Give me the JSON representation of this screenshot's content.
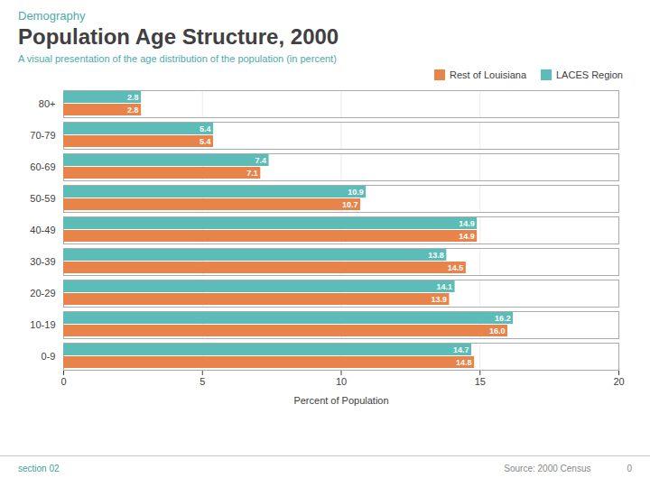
{
  "chart_data": {
    "type": "bar",
    "orientation": "horizontal",
    "title": "Population Age Structure, 2000",
    "subtitle": "Demography",
    "annotations": [
      "A visual presentation of the age distribution of the population (in percent)",
      "section 02",
      "Source: 2000 Census",
      "0"
    ],
    "categories": [
      "80+",
      "70-79",
      "60-69",
      "50-59",
      "40-49",
      "30-39",
      "20-29",
      "10-19",
      "0-9"
    ],
    "series": [
      {
        "name": "Rest of Louisiana",
        "color": "#E8834A",
        "values": [
          2.8,
          5.4,
          7.1,
          10.7,
          14.9,
          14.5,
          13.9,
          16.0,
          14.8
        ],
        "value_labels": [
          "2.8",
          "5.4",
          "7.1",
          "10.7",
          "14.9",
          "14.5",
          "13.9",
          "16.0",
          "14.8"
        ]
      },
      {
        "name": "LACES Region",
        "color": "#5BBCB8",
        "values": [
          2.8,
          5.4,
          7.4,
          10.9,
          14.9,
          13.8,
          14.1,
          16.2,
          14.7
        ]
      }
    ],
    "xlabel": "Percent of Population",
    "xlim": [
      0,
      20
    ],
    "xticks": [
      0,
      5,
      10,
      15,
      20
    ],
    "grid": true,
    "legend": "upper right",
    "data_labels": true
  }
}
